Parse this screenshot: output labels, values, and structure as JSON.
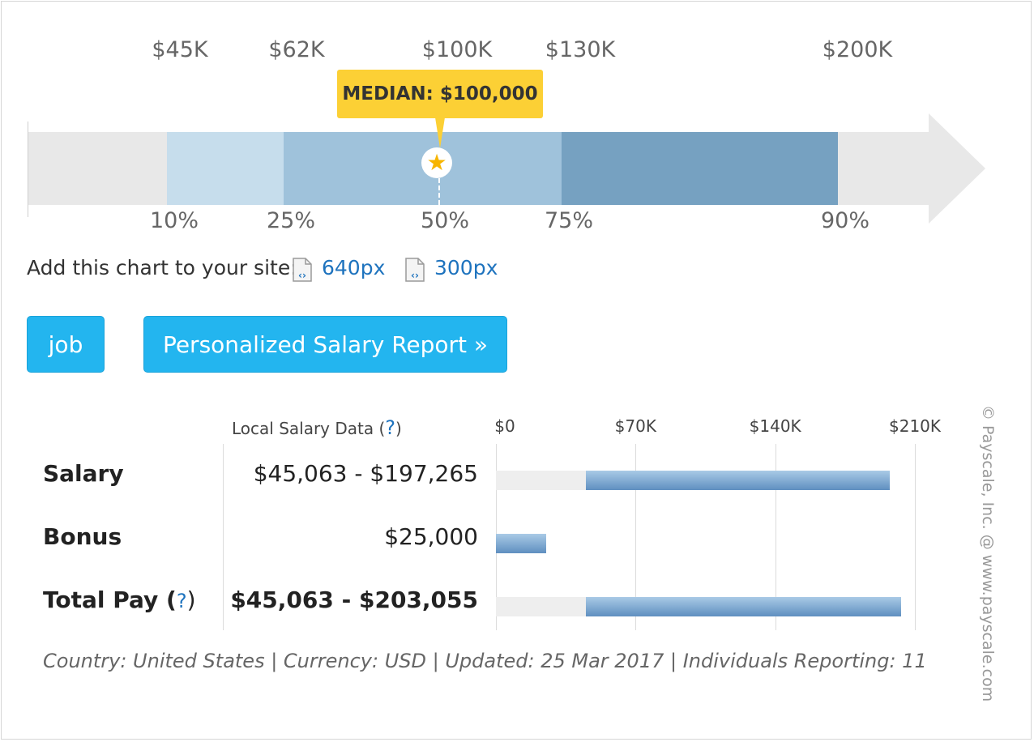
{
  "range_chart": {
    "top_values": [
      "$45K",
      "$62K",
      "$100K",
      "$130K",
      "$200K"
    ],
    "percentiles": [
      "10%",
      "25%",
      "50%",
      "75%",
      "90%"
    ],
    "median_label": "MEDIAN: $100,000",
    "colors": {
      "p10_25": "#c6ddec",
      "p25_75": "#9fc2db",
      "p75_90": "#76a1c1",
      "track": "#e8e8e8",
      "median_box": "#fcd035"
    }
  },
  "embed": {
    "prompt": "Add this chart to your site:",
    "links": [
      "640px",
      "300px"
    ]
  },
  "buttons": {
    "job": "job",
    "report": "Personalized Salary Report »"
  },
  "table": {
    "column_header": "Local Salary Data (",
    "column_header_q": "?",
    "column_header_end": ")",
    "axis_ticks": [
      "$0",
      "$70K",
      "$140K",
      "$210K"
    ],
    "rows": [
      {
        "label": "Salary",
        "value": "$45,063 - $197,265",
        "low": 45063,
        "high": 197265
      },
      {
        "label": "Bonus",
        "value": "$25,000",
        "low": 0,
        "high": 25000
      },
      {
        "label": "Total Pay (",
        "label_q": "?",
        "label_end": ")",
        "value": "$45,063 - $203,055",
        "low": 45063,
        "high": 203055
      }
    ],
    "axis_max": 210000
  },
  "footer": "Country: United States | Currency: USD | Updated: 25 Mar 2017 | Individuals Reporting: 11",
  "copyright": "© Payscale, Inc. @ www.payscale.com",
  "chart_data": {
    "type": "bar",
    "categories": [
      "Salary",
      "Bonus",
      "Total Pay"
    ],
    "series": [
      {
        "values": [
          [
            45063,
            197265
          ],
          [
            0,
            25000
          ],
          [
            45063,
            203055
          ]
        ]
      }
    ],
    "xlim": [
      0,
      210000
    ]
  }
}
